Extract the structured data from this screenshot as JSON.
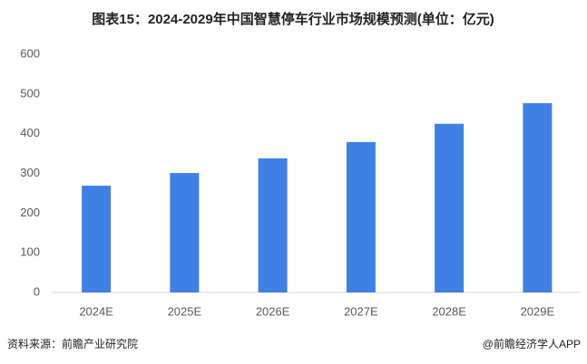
{
  "chart_data": {
    "type": "bar",
    "title": "图表15：2024-2029年中国智慧停车行业市场规模预测(单位：亿元)",
    "categories": [
      "2024E",
      "2025E",
      "2026E",
      "2027E",
      "2028E",
      "2029E"
    ],
    "values": [
      269,
      301,
      338,
      379,
      425,
      477
    ],
    "color": "#3f80e4",
    "ylim": [
      0,
      600
    ],
    "yticks": [
      0,
      100,
      200,
      300,
      400,
      500,
      600
    ],
    "grid": false,
    "source": "资料来源：前瞻产业研究院",
    "credit": "@前瞻经济学人APP"
  }
}
